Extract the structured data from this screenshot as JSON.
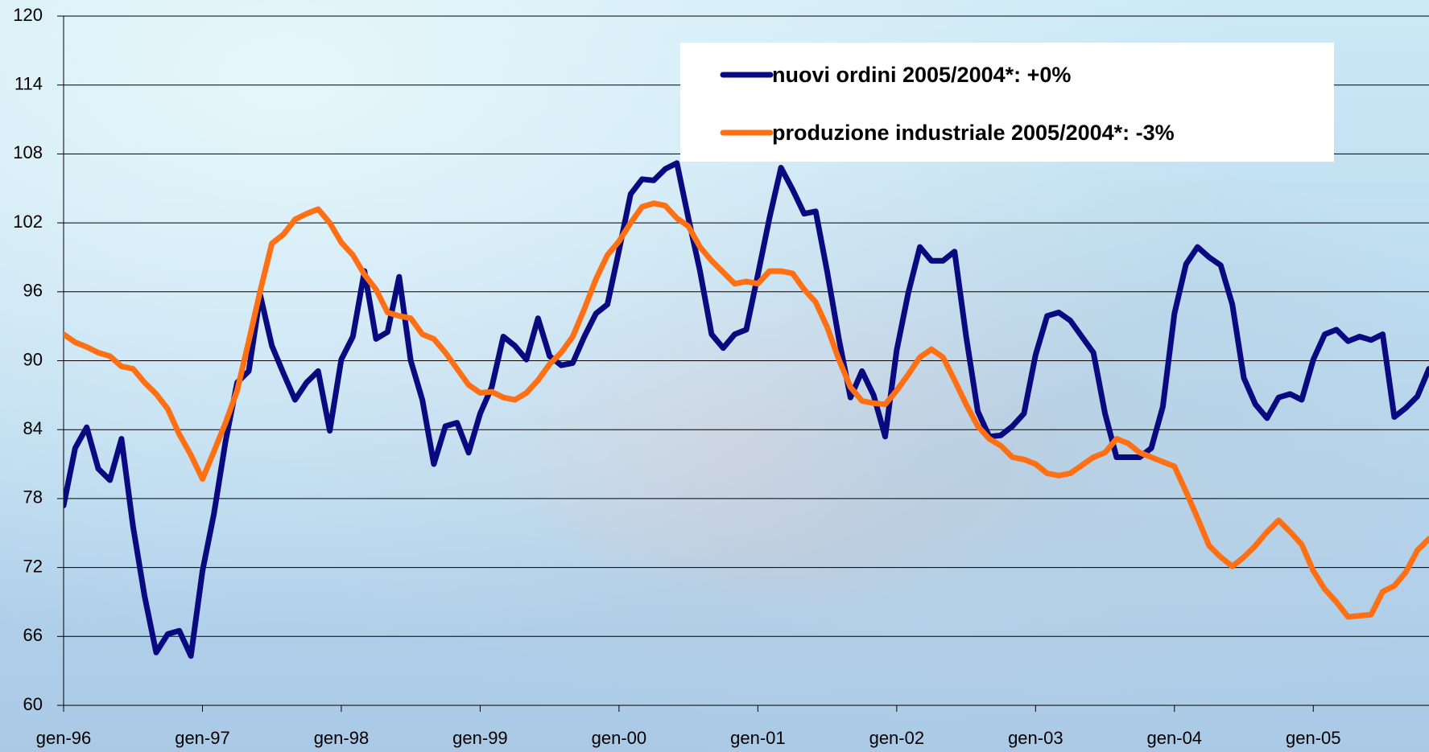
{
  "chart_data": {
    "type": "line",
    "categories": [
      "gen-96",
      null,
      null,
      null,
      null,
      null,
      null,
      null,
      null,
      null,
      null,
      null,
      "gen-97",
      null,
      null,
      null,
      null,
      null,
      null,
      null,
      null,
      null,
      null,
      null,
      "gen-98",
      null,
      null,
      null,
      null,
      null,
      null,
      null,
      null,
      null,
      null,
      null,
      "gen-99",
      null,
      null,
      null,
      null,
      null,
      null,
      null,
      null,
      null,
      null,
      null,
      "gen-00",
      null,
      null,
      null,
      null,
      null,
      null,
      null,
      null,
      null,
      null,
      null,
      "gen-01",
      null,
      null,
      null,
      null,
      null,
      null,
      null,
      null,
      null,
      null,
      null,
      "gen-02",
      null,
      null,
      null,
      null,
      null,
      null,
      null,
      null,
      null,
      null,
      null,
      "gen-03",
      null,
      null,
      null,
      null,
      null,
      null,
      null,
      null,
      null,
      null,
      null,
      "gen-04",
      null,
      null,
      null,
      null,
      null,
      null,
      null,
      null,
      null,
      null,
      null,
      "gen-05",
      null,
      null,
      null,
      null,
      null,
      null,
      null,
      null,
      null,
      null
    ],
    "series": [
      {
        "name": "nuovi ordini 2005/2004*: +0%",
        "color": "#0a0a80",
        "values": [
          77.4,
          82.4,
          84.2,
          80.6,
          79.6,
          83.2,
          75.6,
          69.5,
          64.6,
          66.2,
          66.5,
          64.3,
          71.7,
          76.7,
          83.0,
          88.1,
          89.1,
          95.7,
          91.3,
          88.9,
          86.6,
          88.1,
          89.1,
          83.9,
          90.1,
          92.1,
          97.8,
          91.9,
          92.5,
          97.3,
          90.0,
          86.6,
          81.0,
          84.3,
          84.6,
          82.0,
          85.4,
          87.7,
          92.1,
          91.3,
          90.1,
          93.7,
          90.4,
          89.6,
          89.8,
          92.1,
          94.1,
          94.9,
          99.6,
          104.5,
          105.8,
          105.7,
          106.7,
          107.2,
          102.4,
          97.8,
          92.3,
          91.1,
          92.3,
          92.7,
          97.5,
          102.4,
          106.8,
          104.9,
          102.8,
          103.0,
          97.7,
          91.9,
          86.8,
          89.1,
          87.0,
          83.4,
          90.9,
          95.9,
          99.9,
          98.7,
          98.7,
          99.5,
          92.1,
          85.6,
          83.4,
          83.5,
          84.3,
          85.4,
          90.5,
          93.9,
          94.2,
          93.5,
          92.1,
          90.7,
          85.4,
          81.6,
          81.6,
          81.6,
          82.4,
          86.0,
          94.1,
          98.4,
          99.9,
          99.0,
          98.3,
          94.9,
          88.5,
          86.2,
          85.0,
          86.8,
          87.1,
          86.6,
          90.1,
          92.3,
          92.7,
          91.7,
          92.1,
          91.8,
          92.3,
          85.1,
          85.9,
          86.9,
          89.3
        ]
      },
      {
        "name": "produzione industriale 2005/2004*: -3%",
        "color": "#ff7014",
        "values": [
          92.3,
          91.6,
          91.2,
          90.7,
          90.4,
          89.5,
          89.3,
          88.1,
          87.1,
          85.8,
          83.6,
          81.8,
          79.7,
          82.1,
          84.6,
          87.4,
          91.7,
          96.1,
          100.2,
          101.0,
          102.3,
          102.8,
          103.2,
          102.0,
          100.3,
          99.2,
          97.5,
          96.2,
          94.2,
          93.9,
          93.7,
          92.3,
          91.9,
          90.7,
          89.3,
          87.9,
          87.2,
          87.3,
          86.8,
          86.6,
          87.2,
          88.3,
          89.7,
          90.7,
          92.1,
          94.5,
          97.1,
          99.2,
          100.4,
          102.0,
          103.4,
          103.7,
          103.5,
          102.4,
          101.7,
          99.9,
          98.7,
          97.7,
          96.7,
          96.9,
          96.7,
          97.8,
          97.8,
          97.6,
          96.2,
          95.1,
          92.9,
          90.1,
          87.7,
          86.5,
          86.3,
          86.2,
          87.4,
          88.8,
          90.3,
          91.0,
          90.3,
          88.3,
          86.2,
          84.3,
          83.2,
          82.6,
          81.6,
          81.4,
          81.0,
          80.2,
          80.0,
          80.2,
          80.9,
          81.6,
          82.0,
          83.2,
          82.8,
          82.0,
          81.6,
          81.2,
          80.8,
          78.6,
          76.3,
          73.9,
          72.9,
          72.1,
          72.9,
          73.9,
          75.1,
          76.1,
          75.1,
          74.0,
          71.7,
          70.1,
          69.0,
          67.7,
          67.8,
          67.9,
          69.9,
          70.4,
          71.6,
          73.5,
          74.5
        ]
      }
    ],
    "ylim": [
      60,
      120
    ],
    "yticks": [
      60,
      66,
      72,
      78,
      84,
      90,
      96,
      102,
      108,
      114,
      120
    ],
    "grid": true,
    "legend": "upper right"
  }
}
